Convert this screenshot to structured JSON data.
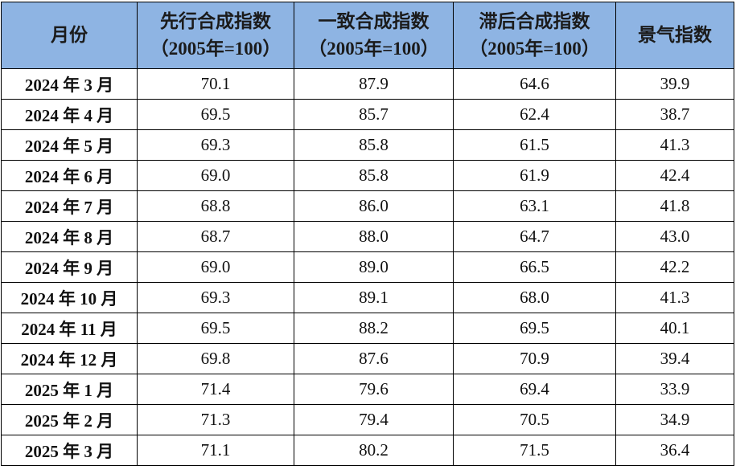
{
  "table": {
    "header": [
      [
        "月份"
      ],
      [
        "先行合成指数",
        "（2005年=100）"
      ],
      [
        "一致合成指数",
        "（2005年=100）"
      ],
      [
        "滞后合成指数",
        "（2005年=100）"
      ],
      [
        "景气指数"
      ]
    ],
    "rows": [
      [
        "2024 年 3 月",
        "70.1",
        "87.9",
        "64.6",
        "39.9"
      ],
      [
        "2024 年 4 月",
        "69.5",
        "85.7",
        "62.4",
        "38.7"
      ],
      [
        "2024 年 5 月",
        "69.3",
        "85.8",
        "61.5",
        "41.3"
      ],
      [
        "2024 年 6 月",
        "69.0",
        "85.8",
        "61.9",
        "42.4"
      ],
      [
        "2024 年 7 月",
        "68.8",
        "86.0",
        "63.1",
        "41.8"
      ],
      [
        "2024 年 8 月",
        "68.7",
        "88.0",
        "64.7",
        "43.0"
      ],
      [
        "2024 年 9 月",
        "69.0",
        "89.0",
        "66.5",
        "42.2"
      ],
      [
        "2024 年 10 月",
        "69.3",
        "89.1",
        "68.0",
        "41.3"
      ],
      [
        "2024 年 11 月",
        "69.5",
        "88.2",
        "69.5",
        "40.1"
      ],
      [
        "2024 年 12 月",
        "69.8",
        "87.6",
        "70.9",
        "39.4"
      ],
      [
        "2025 年 1 月",
        "71.4",
        "79.6",
        "69.4",
        "33.9"
      ],
      [
        "2025 年 2 月",
        "71.3",
        "79.4",
        "70.5",
        "34.9"
      ],
      [
        "2025 年 3 月",
        "71.1",
        "80.2",
        "71.5",
        "36.4"
      ]
    ]
  }
}
